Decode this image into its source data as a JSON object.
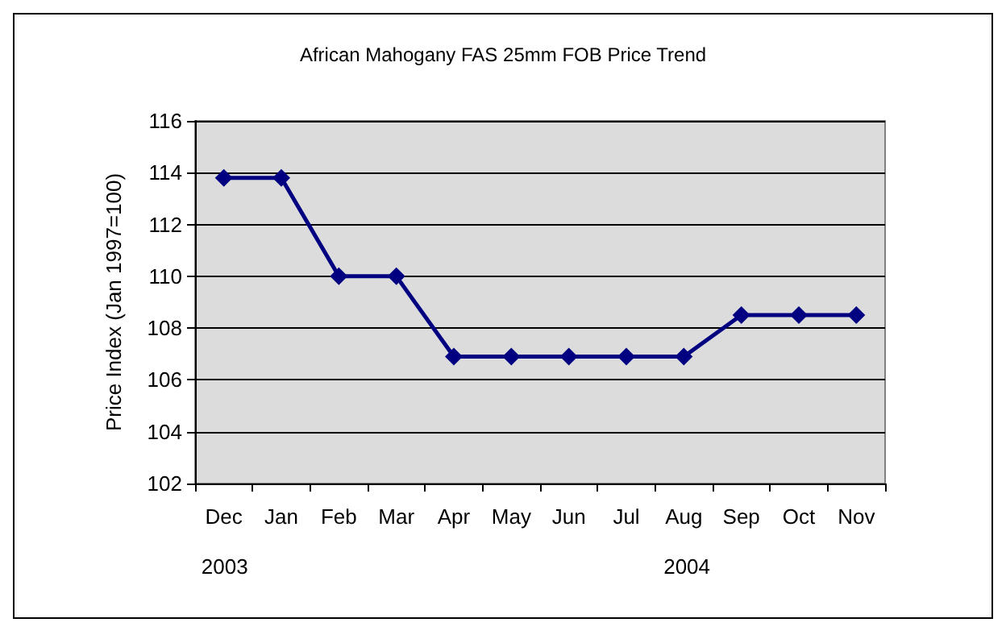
{
  "chart_data": {
    "type": "line",
    "title": "African Mahogany FAS 25mm FOB Price Trend",
    "ylabel": "Price Index (Jan 1997=100)",
    "categories": [
      "Dec",
      "Jan",
      "Feb",
      "Mar",
      "Apr",
      "May",
      "Jun",
      "Jul",
      "Aug",
      "Sep",
      "Oct",
      "Nov"
    ],
    "series": [
      {
        "color": "#000080",
        "values": [
          113.8,
          113.8,
          110,
          110,
          106.9,
          106.9,
          106.9,
          106.9,
          106.9,
          108.5,
          108.5,
          108.5
        ]
      }
    ],
    "ylim": [
      102,
      116
    ],
    "yticks": [
      102,
      104,
      106,
      108,
      110,
      112,
      114,
      116
    ],
    "grid": "y",
    "marker": "diamond",
    "line_style": "solid",
    "annotations": [
      "2003",
      "2004"
    ]
  }
}
